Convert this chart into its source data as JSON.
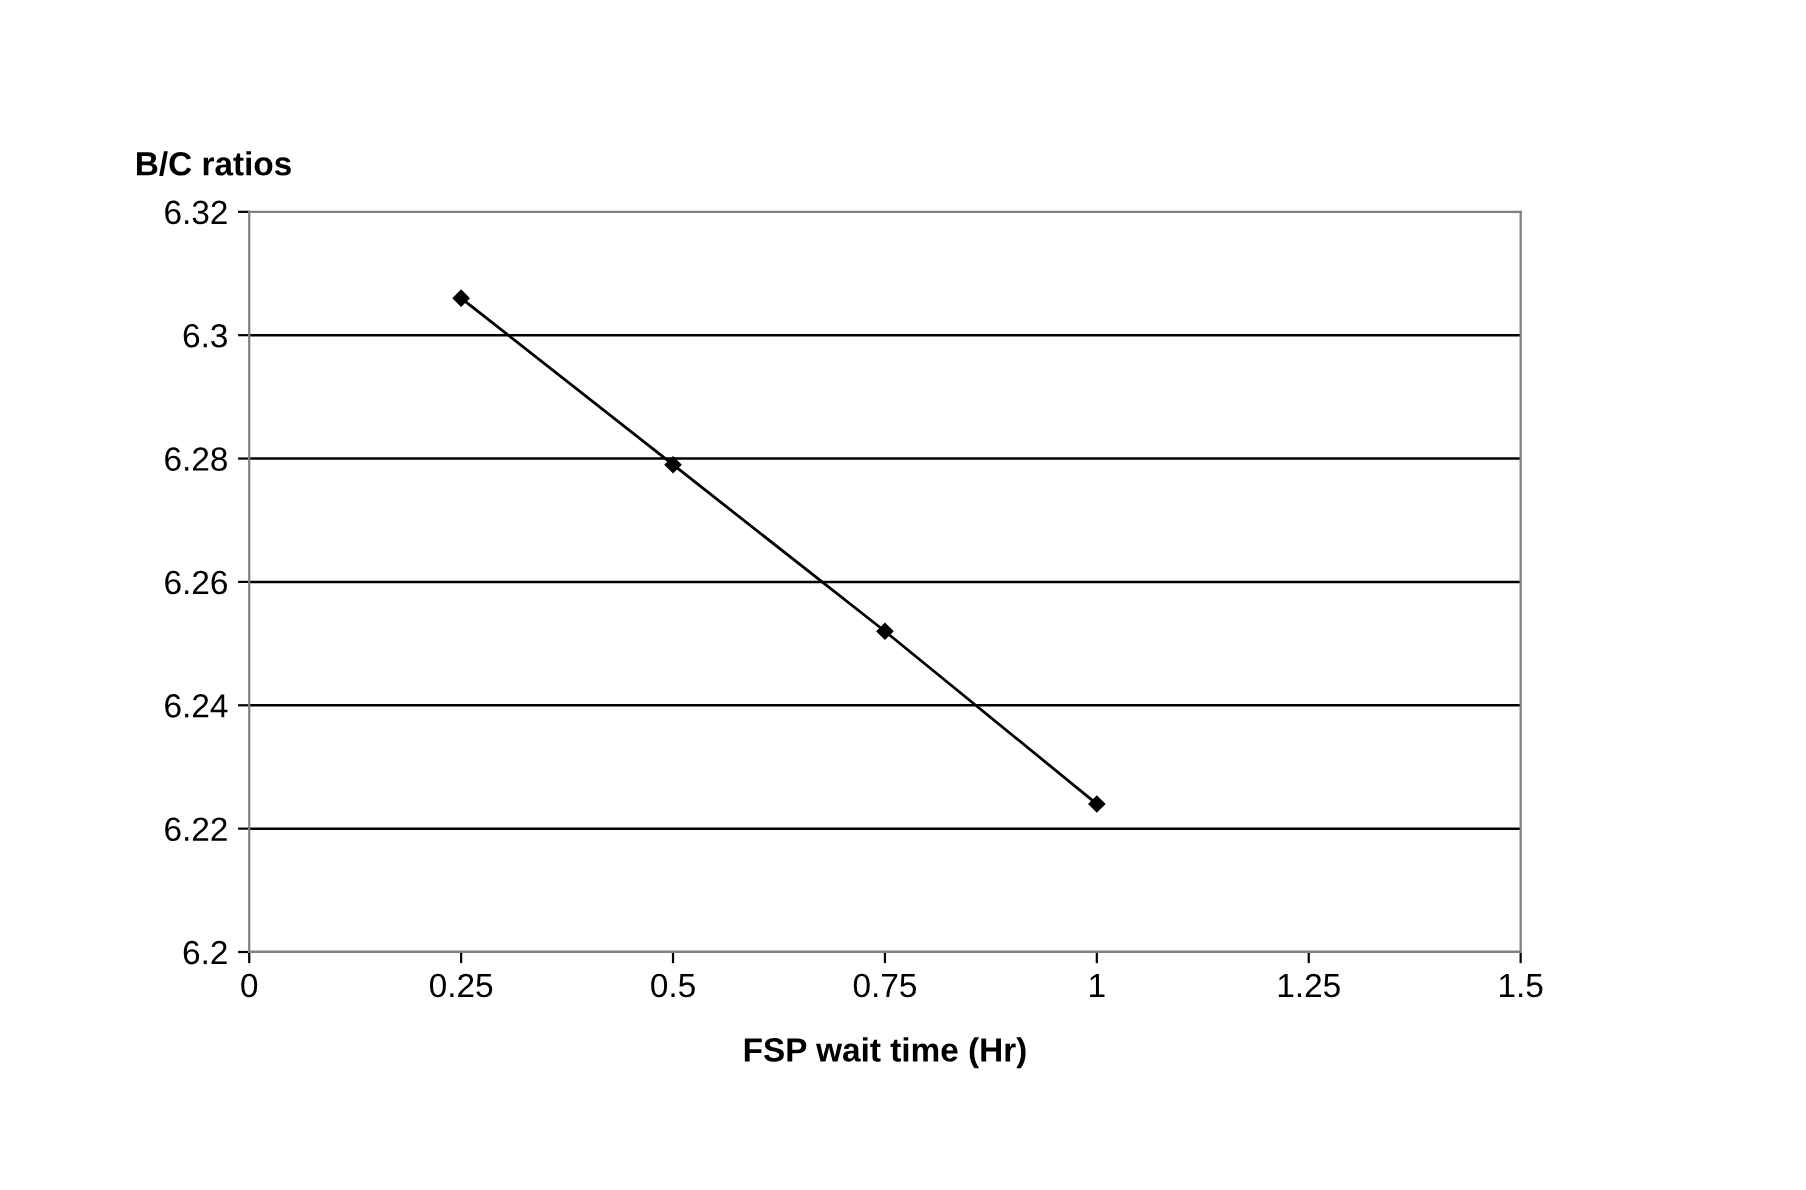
{
  "chart_data": {
    "type": "line",
    "xlabel": "FSP wait time (Hr)",
    "ylabel": "B/C ratios",
    "x": [
      0.25,
      0.5,
      0.75,
      1
    ],
    "series": [
      {
        "color": "#000000",
        "values": [
          6.306,
          6.279,
          6.252,
          6.224
        ]
      }
    ],
    "xlim": [
      0,
      1.5
    ],
    "xticks": [
      0,
      0.25,
      0.5,
      0.75,
      1,
      1.25,
      1.5
    ],
    "ylim": [
      6.2,
      6.32
    ],
    "yticks": [
      6.2,
      6.22,
      6.24,
      6.26,
      6.28,
      6.3,
      6.32
    ],
    "grid": "y",
    "marker": "diamond",
    "line_style": "solid",
    "legend": false
  }
}
